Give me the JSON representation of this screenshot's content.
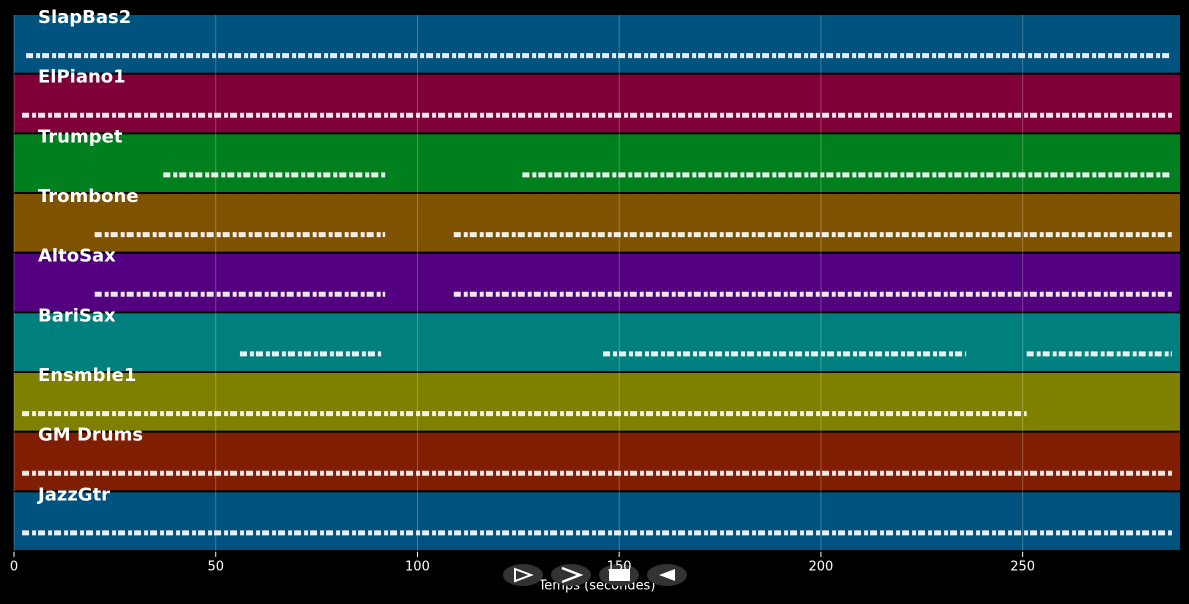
{
  "chart_data": {
    "type": "pianoroll",
    "x_label": "Temps (secondes)",
    "xlim": [
      0,
      289
    ],
    "xticks": [
      0,
      50,
      100,
      150,
      200,
      250
    ],
    "grid": true,
    "tracks": [
      {
        "name": "SlapBas2",
        "color": "#00527f",
        "segments": [
          [
            3,
            287
          ]
        ]
      },
      {
        "name": "ElPiano1",
        "color": "#7f0038",
        "segments": [
          [
            2,
            287
          ]
        ]
      },
      {
        "name": "Trumpet",
        "color": "#007f1e",
        "segments": [
          [
            37,
            92
          ],
          [
            126,
            287
          ]
        ]
      },
      {
        "name": "Trombone",
        "color": "#7f5200",
        "segments": [
          [
            20,
            92
          ],
          [
            109,
            287
          ]
        ]
      },
      {
        "name": "AltoSax",
        "color": "#52007f",
        "segments": [
          [
            20,
            92
          ],
          [
            109,
            287
          ]
        ]
      },
      {
        "name": "BariSax",
        "color": "#007f7f",
        "segments": [
          [
            56,
            91
          ],
          [
            146,
            236
          ],
          [
            251,
            287
          ]
        ]
      },
      {
        "name": "Ensmble1",
        "color": "#7f7f00",
        "segments": [
          [
            2,
            251
          ]
        ]
      },
      {
        "name": "GM Drums",
        "color": "#7f1e00",
        "segments": [
          [
            2,
            287
          ]
        ]
      },
      {
        "name": "JazzGtr",
        "color": "#00527f",
        "segments": [
          [
            2,
            287
          ]
        ]
      }
    ]
  }
}
